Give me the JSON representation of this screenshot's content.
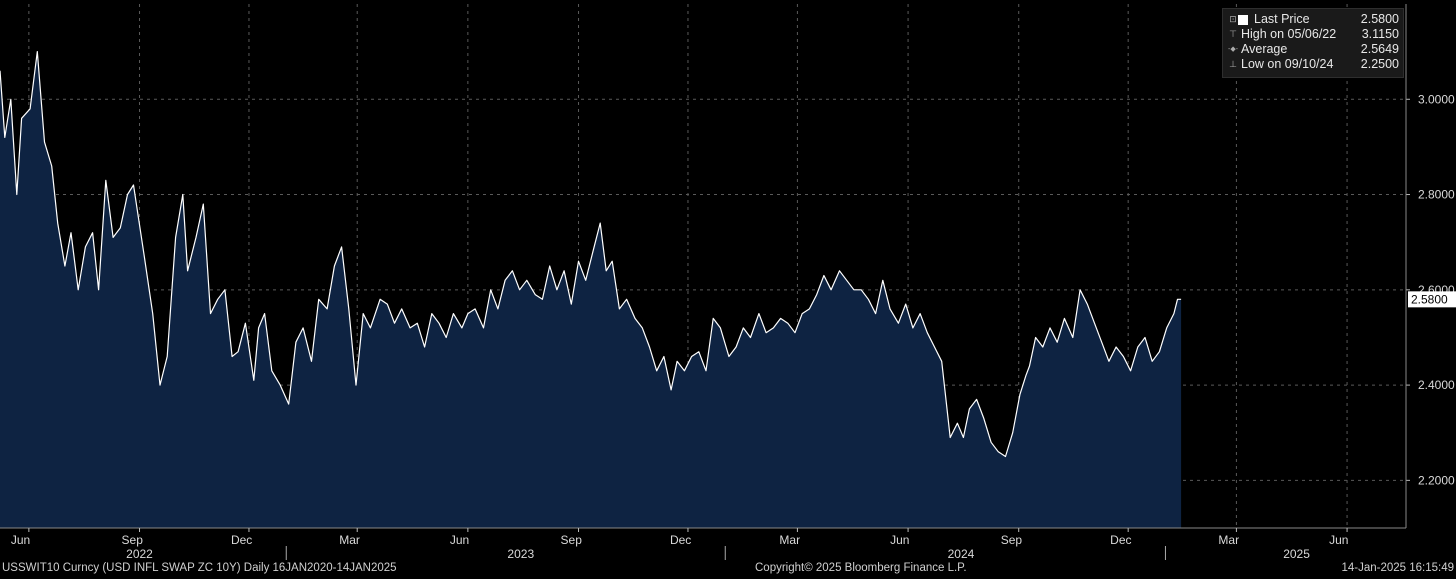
{
  "chart_data": {
    "type": "area",
    "frequency": "Daily",
    "date_range": "16JAN2020-14JAN2025",
    "xlim": [
      "2022-05-08",
      "2025-07-20"
    ],
    "ylim": [
      2.1,
      3.2
    ],
    "y_ticks": [
      "3.0000",
      "2.8000",
      "2.6000",
      "2.4000",
      "2.2000"
    ],
    "x_month_ticks": [
      {
        "date": "2022-06-01",
        "label": "Jun"
      },
      {
        "date": "2022-09-01",
        "label": "Sep"
      },
      {
        "date": "2022-12-01",
        "label": "Dec"
      },
      {
        "date": "2023-03-01",
        "label": "Mar"
      },
      {
        "date": "2023-06-01",
        "label": "Jun"
      },
      {
        "date": "2023-09-01",
        "label": "Sep"
      },
      {
        "date": "2023-12-01",
        "label": "Dec"
      },
      {
        "date": "2024-03-01",
        "label": "Mar"
      },
      {
        "date": "2024-06-01",
        "label": "Jun"
      },
      {
        "date": "2024-09-01",
        "label": "Sep"
      },
      {
        "date": "2024-12-01",
        "label": "Dec"
      },
      {
        "date": "2025-03-01",
        "label": "Mar"
      },
      {
        "date": "2025-06-01",
        "label": "Jun"
      }
    ],
    "x_year_labels": [
      {
        "label": "2022",
        "center": "2022-09-01"
      },
      {
        "label": "2023",
        "center": "2023-07-15"
      },
      {
        "label": "2024",
        "center": "2024-07-15"
      },
      {
        "label": "2025",
        "center": "2025-04-20"
      }
    ],
    "year_separators": [
      "2023-01-01",
      "2024-01-01",
      "2025-01-01"
    ],
    "last_value_label": "2.5800",
    "series": [
      {
        "name": "Last Price",
        "x": [
          "2022-05-08",
          "2022-05-12",
          "2022-05-17",
          "2022-05-22",
          "2022-05-26",
          "2022-06-02",
          "2022-06-08",
          "2022-06-14",
          "2022-06-20",
          "2022-06-25",
          "2022-07-01",
          "2022-07-06",
          "2022-07-12",
          "2022-07-18",
          "2022-07-24",
          "2022-07-29",
          "2022-08-04",
          "2022-08-10",
          "2022-08-16",
          "2022-08-22",
          "2022-08-27",
          "2022-09-02",
          "2022-09-05",
          "2022-09-12",
          "2022-09-18",
          "2022-09-24",
          "2022-10-01",
          "2022-10-07",
          "2022-10-11",
          "2022-10-18",
          "2022-10-24",
          "2022-10-30",
          "2022-11-05",
          "2022-11-11",
          "2022-11-17",
          "2022-11-22",
          "2022-11-28",
          "2022-12-05",
          "2022-12-09",
          "2022-12-14",
          "2022-12-20",
          "2022-12-27",
          "2023-01-03",
          "2023-01-09",
          "2023-01-15",
          "2023-01-22",
          "2023-01-28",
          "2023-02-04",
          "2023-02-10",
          "2023-02-16",
          "2023-02-22",
          "2023-02-28",
          "2023-03-06",
          "2023-03-12",
          "2023-03-20",
          "2023-03-26",
          "2023-04-01",
          "2023-04-07",
          "2023-04-14",
          "2023-04-20",
          "2023-04-26",
          "2023-05-02",
          "2023-05-08",
          "2023-05-14",
          "2023-05-20",
          "2023-05-27",
          "2023-06-01",
          "2023-06-07",
          "2023-06-14",
          "2023-06-20",
          "2023-06-26",
          "2023-07-02",
          "2023-07-08",
          "2023-07-14",
          "2023-07-20",
          "2023-07-27",
          "2023-08-02",
          "2023-08-08",
          "2023-08-14",
          "2023-08-20",
          "2023-08-26",
          "2023-09-01",
          "2023-09-07",
          "2023-09-13",
          "2023-09-19",
          "2023-09-24",
          "2023-09-29",
          "2023-10-05",
          "2023-10-11",
          "2023-10-18",
          "2023-10-24",
          "2023-10-30",
          "2023-11-05",
          "2023-11-11",
          "2023-11-17",
          "2023-11-22",
          "2023-11-28",
          "2023-12-04",
          "2023-12-10",
          "2023-12-16",
          "2023-12-22",
          "2023-12-28",
          "2024-01-04",
          "2024-01-10",
          "2024-01-16",
          "2024-01-22",
          "2024-01-29",
          "2024-02-04",
          "2024-02-10",
          "2024-02-16",
          "2024-02-22",
          "2024-02-28",
          "2024-03-05",
          "2024-03-11",
          "2024-03-17",
          "2024-03-23",
          "2024-03-29",
          "2024-04-05",
          "2024-04-11",
          "2024-04-17",
          "2024-04-23",
          "2024-04-29",
          "2024-05-05",
          "2024-05-11",
          "2024-05-17",
          "2024-05-24",
          "2024-05-30",
          "2024-06-05",
          "2024-06-11",
          "2024-06-17",
          "2024-06-23",
          "2024-06-29",
          "2024-07-06",
          "2024-07-12",
          "2024-07-17",
          "2024-07-22",
          "2024-07-28",
          "2024-08-03",
          "2024-08-09",
          "2024-08-15",
          "2024-08-21",
          "2024-08-27",
          "2024-09-02",
          "2024-09-07",
          "2024-09-10",
          "2024-09-15",
          "2024-09-21",
          "2024-09-27",
          "2024-10-03",
          "2024-10-09",
          "2024-10-16",
          "2024-10-22",
          "2024-10-28",
          "2024-11-03",
          "2024-11-09",
          "2024-11-15",
          "2024-11-21",
          "2024-11-27",
          "2024-12-03",
          "2024-12-09",
          "2024-12-15",
          "2024-12-21",
          "2024-12-27",
          "2025-01-02",
          "2025-01-08",
          "2025-01-11",
          "2025-01-14"
        ],
        "y": [
          3.06,
          2.92,
          3.0,
          2.8,
          2.96,
          2.98,
          3.1,
          2.91,
          2.86,
          2.74,
          2.65,
          2.72,
          2.6,
          2.69,
          2.72,
          2.6,
          2.83,
          2.71,
          2.73,
          2.8,
          2.82,
          2.72,
          2.67,
          2.55,
          2.4,
          2.46,
          2.71,
          2.8,
          2.64,
          2.71,
          2.78,
          2.55,
          2.58,
          2.6,
          2.46,
          2.47,
          2.53,
          2.41,
          2.52,
          2.55,
          2.43,
          2.4,
          2.36,
          2.49,
          2.52,
          2.45,
          2.58,
          2.56,
          2.65,
          2.69,
          2.56,
          2.4,
          2.55,
          2.52,
          2.58,
          2.57,
          2.53,
          2.56,
          2.52,
          2.53,
          2.48,
          2.55,
          2.53,
          2.5,
          2.55,
          2.52,
          2.55,
          2.56,
          2.52,
          2.6,
          2.56,
          2.62,
          2.64,
          2.6,
          2.62,
          2.59,
          2.58,
          2.65,
          2.6,
          2.64,
          2.57,
          2.66,
          2.62,
          2.68,
          2.74,
          2.64,
          2.66,
          2.56,
          2.58,
          2.54,
          2.52,
          2.48,
          2.43,
          2.46,
          2.39,
          2.45,
          2.43,
          2.46,
          2.47,
          2.43,
          2.54,
          2.52,
          2.46,
          2.48,
          2.52,
          2.5,
          2.55,
          2.51,
          2.52,
          2.54,
          2.53,
          2.51,
          2.55,
          2.56,
          2.59,
          2.63,
          2.6,
          2.64,
          2.62,
          2.6,
          2.6,
          2.58,
          2.55,
          2.62,
          2.56,
          2.53,
          2.57,
          2.52,
          2.55,
          2.51,
          2.48,
          2.45,
          2.29,
          2.32,
          2.29,
          2.35,
          2.37,
          2.33,
          2.28,
          2.26,
          2.25,
          2.3,
          2.38,
          2.42,
          2.44,
          2.5,
          2.48,
          2.52,
          2.49,
          2.54,
          2.5,
          2.6,
          2.57,
          2.53,
          2.49,
          2.45,
          2.48,
          2.46,
          2.43,
          2.48,
          2.5,
          2.45,
          2.47,
          2.52,
          2.55,
          2.58,
          2.58
        ]
      }
    ]
  },
  "legend": {
    "rows": [
      {
        "icon": "⊡",
        "label": "Last Price",
        "value": "2.5800"
      },
      {
        "icon": "⊤",
        "label": "High on 05/06/22",
        "value": "3.1150"
      },
      {
        "icon": "-◆-",
        "label": "Average",
        "value": "2.5649"
      },
      {
        "icon": "⊥",
        "label": "Low on 09/10/24",
        "value": "2.2500"
      }
    ]
  },
  "footer": {
    "left": "USSWIT10 Curncy (USD INFL SWAP ZC 10Y)  Daily 16JAN2020-14JAN2025",
    "center": "Copyright© 2025 Bloomberg Finance L.P.",
    "right": "14-Jan-2025 16:15:49"
  },
  "colors": {
    "background": "#000000",
    "area_fill": "#0e2342",
    "line": "#ffffff",
    "grid": "#5a5a5a",
    "last_label_bg": "#ffffff",
    "last_label_text": "#000000"
  }
}
